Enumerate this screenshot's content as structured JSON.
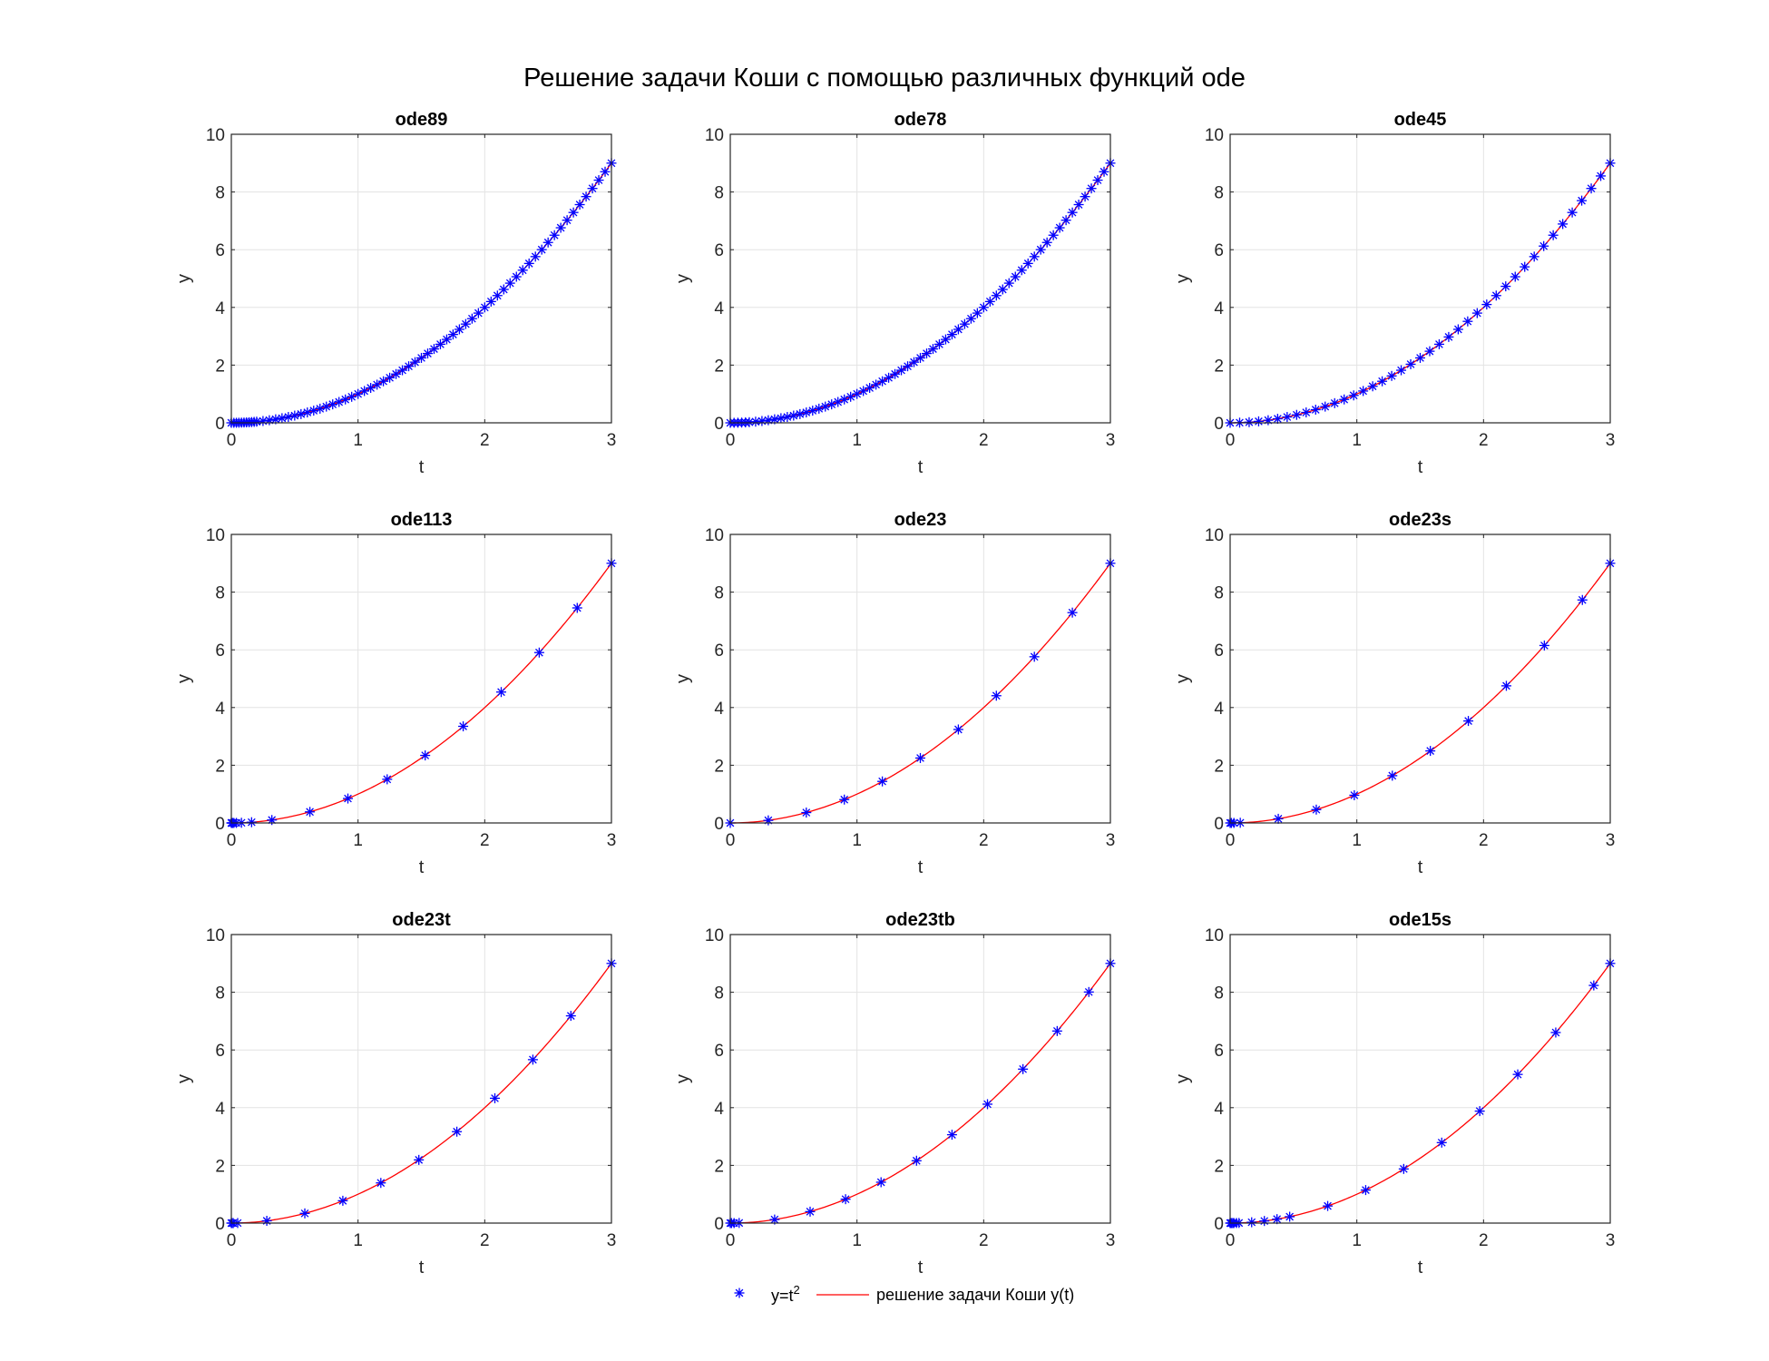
{
  "figure": {
    "title": "Решение задачи Коши с помощью различных функций ode"
  },
  "colors": {
    "marker": "#0000ff",
    "line": "#ff0000",
    "grid": "#e3e3e3",
    "axis": "#262626"
  },
  "legend": {
    "placement": "bottom-center",
    "entries": [
      {
        "name": "y=t",
        "sup": "2",
        "style": "marker-asterisk"
      },
      {
        "name": "решение задачи Коши y(t)",
        "style": "line"
      }
    ]
  },
  "chart_data": [
    {
      "type": "line",
      "title": "ode89",
      "xlabel": "t",
      "ylabel": "y",
      "xlim": [
        0,
        3
      ],
      "ylim": [
        0,
        10
      ],
      "xticks": [
        "0",
        "1",
        "2",
        "3"
      ],
      "yticks": [
        "0",
        "2",
        "4",
        "6",
        "8",
        "10"
      ],
      "grid": true,
      "series": [
        {
          "x": [
            0,
            0.02,
            0.04,
            0.06,
            0.08,
            0.1,
            0.12,
            0.14,
            0.16,
            0.18,
            0.2,
            0.25,
            0.3,
            0.35,
            0.4,
            0.45,
            0.5,
            0.55,
            0.6,
            0.65,
            0.7,
            0.75,
            0.8,
            0.85,
            0.9,
            0.95,
            1.0,
            1.05,
            1.1,
            1.15,
            1.2,
            1.25,
            1.3,
            1.35,
            1.4,
            1.45,
            1.5,
            1.55,
            1.6,
            1.65,
            1.7,
            1.75,
            1.8,
            1.85,
            1.9,
            1.95,
            2.0,
            2.05,
            2.1,
            2.15,
            2.2,
            2.25,
            2.3,
            2.35,
            2.4,
            2.45,
            2.5,
            2.55,
            2.6,
            2.65,
            2.7,
            2.75,
            2.8,
            2.85,
            2.9,
            2.95,
            3.0
          ]
        }
      ]
    },
    {
      "type": "line",
      "title": "ode78",
      "xlabel": "t",
      "ylabel": "y",
      "xlim": [
        0,
        3
      ],
      "ylim": [
        0,
        10
      ],
      "xticks": [
        "0",
        "1",
        "2",
        "3"
      ],
      "yticks": [
        "0",
        "2",
        "4",
        "6",
        "8",
        "10"
      ],
      "grid": true,
      "series": [
        {
          "x": [
            0,
            0.03,
            0.06,
            0.09,
            0.12,
            0.15,
            0.2,
            0.25,
            0.3,
            0.35,
            0.4,
            0.45,
            0.5,
            0.55,
            0.6,
            0.65,
            0.7,
            0.75,
            0.8,
            0.85,
            0.9,
            0.95,
            1.0,
            1.05,
            1.1,
            1.15,
            1.2,
            1.25,
            1.3,
            1.35,
            1.4,
            1.45,
            1.5,
            1.55,
            1.6,
            1.65,
            1.7,
            1.75,
            1.8,
            1.85,
            1.9,
            1.95,
            2.0,
            2.05,
            2.1,
            2.15,
            2.2,
            2.25,
            2.3,
            2.35,
            2.4,
            2.45,
            2.5,
            2.55,
            2.6,
            2.65,
            2.7,
            2.75,
            2.8,
            2.85,
            2.9,
            2.95,
            3.0
          ]
        }
      ]
    },
    {
      "type": "line",
      "title": "ode45",
      "xlabel": "t",
      "ylabel": "y",
      "xlim": [
        0,
        3
      ],
      "ylim": [
        0,
        10
      ],
      "xticks": [
        "0",
        "1",
        "2",
        "3"
      ],
      "yticks": [
        "0",
        "2",
        "4",
        "6",
        "8",
        "10"
      ],
      "grid": true,
      "series": [
        {
          "x": [
            0,
            0.075,
            0.15,
            0.225,
            0.3,
            0.375,
            0.45,
            0.525,
            0.6,
            0.675,
            0.75,
            0.825,
            0.9,
            0.975,
            1.05,
            1.125,
            1.2,
            1.275,
            1.35,
            1.425,
            1.5,
            1.575,
            1.65,
            1.725,
            1.8,
            1.875,
            1.95,
            2.025,
            2.1,
            2.175,
            2.25,
            2.325,
            2.4,
            2.475,
            2.55,
            2.625,
            2.7,
            2.775,
            2.85,
            2.925,
            3.0
          ]
        }
      ]
    },
    {
      "type": "line",
      "title": "ode113",
      "xlabel": "t",
      "ylabel": "y",
      "xlim": [
        0,
        3
      ],
      "ylim": [
        0,
        10
      ],
      "xticks": [
        "0",
        "1",
        "2",
        "3"
      ],
      "yticks": [
        "0",
        "2",
        "4",
        "6",
        "8",
        "10"
      ],
      "grid": true,
      "series": [
        {
          "x": [
            0,
            0.002,
            0.005,
            0.01,
            0.02,
            0.04,
            0.08,
            0.16,
            0.32,
            0.62,
            0.92,
            1.23,
            1.53,
            1.83,
            2.13,
            2.43,
            2.73,
            3.0
          ]
        }
      ]
    },
    {
      "type": "line",
      "title": "ode23",
      "xlabel": "t",
      "ylabel": "y",
      "xlim": [
        0,
        3
      ],
      "ylim": [
        0,
        10
      ],
      "xticks": [
        "0",
        "1",
        "2",
        "3"
      ],
      "yticks": [
        "0",
        "2",
        "4",
        "6",
        "8",
        "10"
      ],
      "grid": true,
      "series": [
        {
          "x": [
            0,
            0.3,
            0.6,
            0.9,
            1.2,
            1.5,
            1.8,
            2.1,
            2.4,
            2.7,
            3.0
          ]
        }
      ]
    },
    {
      "type": "line",
      "title": "ode23s",
      "xlabel": "t",
      "ylabel": "y",
      "xlim": [
        0,
        3
      ],
      "ylim": [
        0,
        10
      ],
      "xticks": [
        "0",
        "1",
        "2",
        "3"
      ],
      "yticks": [
        "0",
        "2",
        "4",
        "6",
        "8",
        "10"
      ],
      "grid": true,
      "series": [
        {
          "x": [
            0,
            0.01,
            0.03,
            0.08,
            0.38,
            0.68,
            0.98,
            1.28,
            1.58,
            1.88,
            2.18,
            2.48,
            2.78,
            3.0
          ]
        }
      ]
    },
    {
      "type": "line",
      "title": "ode23t",
      "xlabel": "t",
      "ylabel": "y",
      "xlim": [
        0,
        3
      ],
      "ylim": [
        0,
        10
      ],
      "xticks": [
        "0",
        "1",
        "2",
        "3"
      ],
      "yticks": [
        "0",
        "2",
        "4",
        "6",
        "8",
        "10"
      ],
      "grid": true,
      "series": [
        {
          "x": [
            0,
            0.005,
            0.015,
            0.05,
            0.28,
            0.58,
            0.88,
            1.18,
            1.48,
            1.78,
            2.08,
            2.38,
            2.68,
            3.0
          ]
        }
      ]
    },
    {
      "type": "line",
      "title": "ode23tb",
      "xlabel": "t",
      "ylabel": "y",
      "xlim": [
        0,
        3
      ],
      "ylim": [
        0,
        10
      ],
      "xticks": [
        "0",
        "1",
        "2",
        "3"
      ],
      "yticks": [
        "0",
        "2",
        "4",
        "6",
        "8",
        "10"
      ],
      "grid": true,
      "series": [
        {
          "x": [
            0,
            0.01,
            0.03,
            0.07,
            0.35,
            0.63,
            0.91,
            1.19,
            1.47,
            1.75,
            2.03,
            2.31,
            2.58,
            2.83,
            3.0
          ]
        }
      ]
    },
    {
      "type": "line",
      "title": "ode15s",
      "xlabel": "t",
      "ylabel": "y",
      "xlim": [
        0,
        3
      ],
      "ylim": [
        0,
        10
      ],
      "xticks": [
        "0",
        "1",
        "2",
        "3"
      ],
      "yticks": [
        "0",
        "2",
        "4",
        "6",
        "8",
        "10"
      ],
      "grid": true,
      "series": [
        {
          "x": [
            0,
            0.005,
            0.01,
            0.02,
            0.03,
            0.05,
            0.07,
            0.17,
            0.27,
            0.37,
            0.47,
            0.77,
            1.07,
            1.37,
            1.67,
            1.97,
            2.27,
            2.57,
            2.87,
            3.0
          ]
        }
      ]
    }
  ]
}
